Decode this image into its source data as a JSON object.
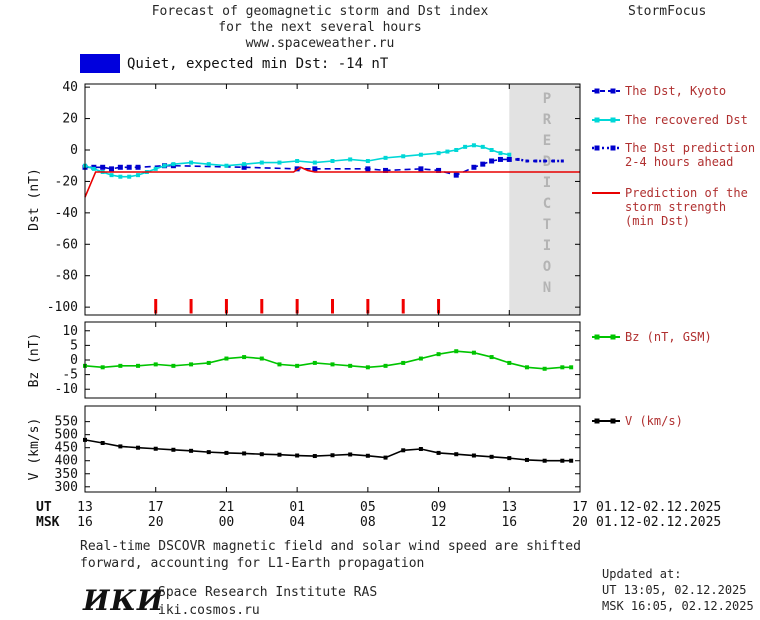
{
  "header": {
    "title_line1": "Forecast of geomagnetic storm and Dst index",
    "title_line2": "for the next several hours",
    "title_line3": "www.spaceweather.ru",
    "brand": "StormFocus"
  },
  "status": {
    "label": "Quiet, expected min Dst: -14 nT"
  },
  "colors": {
    "status_box": "#0000dd",
    "prediction_band": "#e2e2e2",
    "prediction_text": "#b4b4b4",
    "axis": "#000000",
    "legend_text": "#b03030"
  },
  "legend": {
    "text_color": "#b03030",
    "entries": [
      {
        "id": "dst-kyoto",
        "lines": [
          "The Dst, Kyoto"
        ],
        "swatch": {
          "panel": 0,
          "series": 0
        }
      },
      {
        "id": "recovered-dst",
        "lines": [
          "The recovered Dst"
        ],
        "swatch": {
          "panel": 0,
          "series": 1
        }
      },
      {
        "id": "dst-prediction",
        "lines": [
          "The Dst prediction",
          "2-4 hours ahead"
        ],
        "swatch": {
          "panel": 0,
          "series": 2
        }
      },
      {
        "id": "storm-prediction",
        "lines": [
          "Prediction of the",
          "storm strength",
          "(min Dst)"
        ],
        "swatch": {
          "panel": 0,
          "series": 3
        }
      },
      {
        "id": "bz",
        "lines": [
          "Bz (nT, GSM)"
        ],
        "swatch": {
          "panel": 1,
          "series": 0
        }
      },
      {
        "id": "v",
        "lines": [
          "V (km/s)"
        ],
        "swatch": {
          "panel": 2,
          "series": 0
        }
      }
    ]
  },
  "chart_data": {
    "type": "line",
    "title": "Forecast of geomagnetic storm and Dst index for the next several hours",
    "x_axis": {
      "unit": "hours since 01.12.2025 13:00 UT",
      "range": [
        0,
        28
      ],
      "tick_t": [
        0,
        4,
        8,
        12,
        16,
        20,
        24,
        28
      ],
      "ut_label": "UT",
      "msk_label": "MSK",
      "ut_tick_labels": [
        "13",
        "17",
        "21",
        "01",
        "05",
        "09",
        "13",
        "17"
      ],
      "msk_tick_labels": [
        "16",
        "20",
        "00",
        "04",
        "08",
        "12",
        "16",
        "20"
      ],
      "date_range_label": "01.12-02.12.2025"
    },
    "prediction_window": {
      "start_t": 24,
      "end_t": 28,
      "label": "PREDICTION"
    },
    "panels": [
      {
        "name": "Dst",
        "ylabel": "Dst (nT)",
        "ylim": [
          -105,
          42
        ],
        "yticks": [
          40,
          20,
          0,
          -20,
          -40,
          -60,
          -80,
          -100
        ],
        "event_tick_t": [
          4,
          6,
          8,
          10,
          12,
          14,
          16,
          18,
          20
        ],
        "event_tick_color": "#f00000",
        "series": [
          {
            "name": "The Dst, Kyoto",
            "color": "#0000cd",
            "style": "dashed",
            "markers": true,
            "x": [
              0,
              0.5,
              1,
              1.5,
              2,
              2.5,
              3,
              4.5,
              5,
              9,
              12,
              13,
              16,
              17,
              19,
              20,
              21,
              22,
              22.5,
              23,
              23.5,
              24
            ],
            "y": [
              -11,
              -11,
              -11,
              -12,
              -11,
              -11,
              -11,
              -10,
              -10,
              -11,
              -12,
              -12,
              -12,
              -13,
              -12,
              -13,
              -16,
              -11,
              -9,
              -7,
              -6,
              -6
            ]
          },
          {
            "name": "The recovered Dst",
            "color": "#00d7d7",
            "style": "solid",
            "markers": true,
            "x": [
              0,
              0.5,
              1,
              1.5,
              2,
              2.5,
              3,
              3.5,
              4,
              4.5,
              5,
              6,
              7,
              8,
              9,
              10,
              11,
              12,
              13,
              14,
              15,
              16,
              17,
              18,
              19,
              20,
              20.5,
              21,
              21.5,
              22,
              22.5,
              23,
              23.5,
              24
            ],
            "y": [
              -10,
              -12,
              -14,
              -16,
              -17,
              -17,
              -16,
              -14,
              -12,
              -10,
              -9,
              -8,
              -9,
              -10,
              -9,
              -8,
              -8,
              -7,
              -8,
              -7,
              -6,
              -7,
              -5,
              -4,
              -3,
              -2,
              -1,
              0,
              2,
              3,
              2,
              0,
              -2,
              -3
            ]
          },
          {
            "name": "The Dst prediction 2-4 hours ahead",
            "color": "#0000cd",
            "style": "dotted",
            "markers": true,
            "x": [
              24,
              24.5,
              25,
              25.5,
              26,
              26.5,
              27
            ],
            "y": [
              -6,
              -6,
              -7,
              -7,
              -7,
              -7,
              -7
            ]
          },
          {
            "name": "Prediction of the storm strength (min Dst)",
            "color": "#e80000",
            "style": "solid",
            "markers": false,
            "x": [
              0,
              0.6,
              11.8,
              12.2,
              12.6,
              13,
              28
            ],
            "y": [
              -30,
              -14,
              -14,
              -11,
              -13,
              -14,
              -14
            ]
          }
        ]
      },
      {
        "name": "Bz",
        "ylabel": "Bz (nT)",
        "ylim": [
          -13,
          13
        ],
        "yticks": [
          10,
          5,
          0,
          -5,
          -10
        ],
        "series": [
          {
            "name": "Bz (nT, GSM)",
            "color": "#00c400",
            "style": "solid",
            "markers": true,
            "x": [
              0,
              1,
              2,
              3,
              4,
              5,
              6,
              7,
              8,
              9,
              10,
              11,
              12,
              13,
              14,
              15,
              16,
              17,
              18,
              19,
              20,
              21,
              22,
              23,
              24,
              25,
              26,
              27,
              27.5
            ],
            "y": [
              -2,
              -2.5,
              -2,
              -2,
              -1.5,
              -2,
              -1.5,
              -1,
              0.5,
              1,
              0.5,
              -1.5,
              -2,
              -1,
              -1.5,
              -2,
              -2.5,
              -2,
              -1,
              0.5,
              2,
              3,
              2.5,
              1,
              -1,
              -2.5,
              -3,
              -2.5,
              -2.5
            ]
          }
        ]
      },
      {
        "name": "V",
        "ylabel": "V (km/s)",
        "ylim": [
          280,
          610
        ],
        "yticks": [
          550,
          500,
          450,
          400,
          350,
          300
        ],
        "series": [
          {
            "name": "V (km/s)",
            "color": "#000000",
            "style": "solid",
            "markers": true,
            "x": [
              0,
              1,
              2,
              3,
              4,
              5,
              6,
              7,
              8,
              9,
              10,
              11,
              12,
              13,
              14,
              15,
              16,
              17,
              18,
              19,
              20,
              21,
              22,
              23,
              24,
              25,
              26,
              27,
              27.5
            ],
            "y": [
              480,
              468,
              455,
              450,
              446,
              442,
              438,
              433,
              430,
              428,
              425,
              423,
              420,
              418,
              421,
              424,
              419,
              412,
              440,
              445,
              430,
              425,
              420,
              415,
              410,
              403,
              400,
              400,
              400
            ]
          }
        ]
      }
    ]
  },
  "footer": {
    "note_line1": "Real-time DSCOVR magnetic field and solar wind speed are shifted",
    "note_line2": "forward, accounting for L1-Earth propagation",
    "updated_label": "Updated at:",
    "updated_ut": "UT  13:05, 02.12.2025",
    "updated_msk": "MSK 16:05, 02.12.2025",
    "logo": "ИКИ",
    "institute": "Space Research Institute RAS",
    "site": "iki.cosmos.ru"
  }
}
